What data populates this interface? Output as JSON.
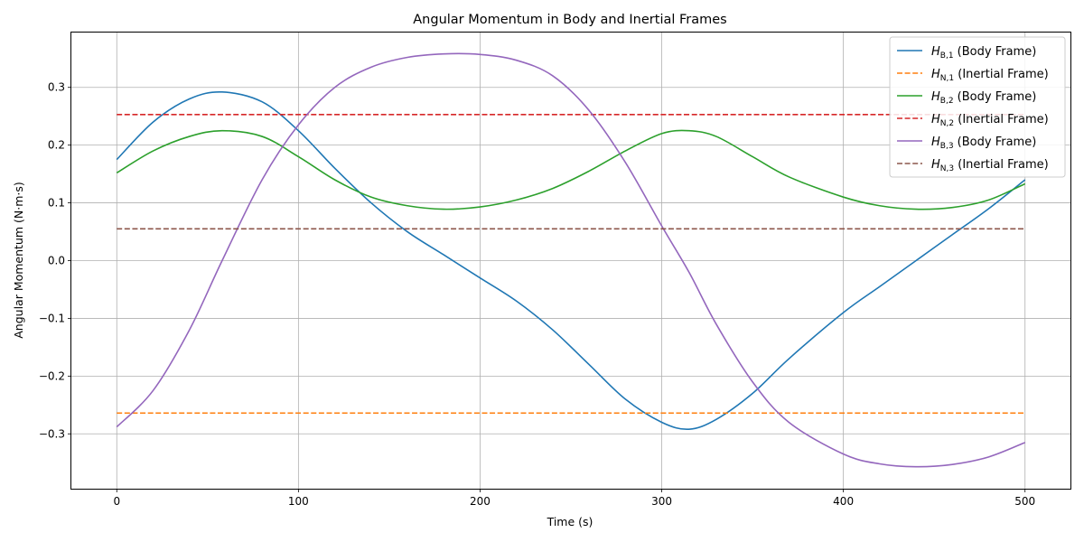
{
  "chart_data": {
    "type": "line",
    "title": "Angular Momentum in Body and Inertial Frames",
    "xlabel": "Time (s)",
    "ylabel": "Angular Momentum (N·m·s)",
    "xlim": [
      -25,
      525
    ],
    "ylim": [
      -0.395,
      0.395
    ],
    "xticks": [
      0,
      100,
      200,
      300,
      400,
      500
    ],
    "xtick_labels": [
      "0",
      "100",
      "200",
      "300",
      "400",
      "500"
    ],
    "yticks": [
      -0.3,
      -0.2,
      -0.1,
      0.0,
      0.1,
      0.2,
      0.3
    ],
    "ytick_labels": [
      "−0.3",
      "−0.2",
      "−0.1",
      "0.0",
      "0.1",
      "0.2",
      "0.3"
    ],
    "grid": true,
    "legend_position": "top-right",
    "x": [
      0,
      20,
      40,
      58,
      80,
      100,
      120,
      140,
      160,
      180,
      200,
      220,
      240,
      260,
      280,
      300,
      315,
      330,
      350,
      370,
      400,
      420,
      440,
      460,
      480,
      500
    ],
    "series": [
      {
        "name": "H_{B,1} (Body Frame)",
        "legend_main": "H",
        "legend_sub": "B,1",
        "legend_rest": " (Body Frame)",
        "color": "#1f77b4",
        "dashed": false,
        "values": [
          0.175,
          0.24,
          0.28,
          0.292,
          0.275,
          0.225,
          0.16,
          0.1,
          0.05,
          0.01,
          -0.03,
          -0.07,
          -0.12,
          -0.18,
          -0.24,
          -0.28,
          -0.292,
          -0.275,
          -0.23,
          -0.17,
          -0.09,
          -0.045,
          0.0,
          0.045,
          0.09,
          0.14
        ]
      },
      {
        "name": "H_{N,1} (Inertial Frame)",
        "legend_main": "H",
        "legend_sub": "N,1",
        "legend_rest": " (Inertial Frame)",
        "color": "#ff7f0e",
        "dashed": true,
        "values": [
          -0.264,
          -0.264,
          -0.264,
          -0.264,
          -0.264,
          -0.264,
          -0.264,
          -0.264,
          -0.264,
          -0.264,
          -0.264,
          -0.264,
          -0.264,
          -0.264,
          -0.264,
          -0.264,
          -0.264,
          -0.264,
          -0.264,
          -0.264,
          -0.264,
          -0.264,
          -0.264,
          -0.264,
          -0.264,
          -0.264
        ]
      },
      {
        "name": "H_{B,2} (Body Frame)",
        "legend_main": "H",
        "legend_sub": "B,2",
        "legend_rest": " (Body Frame)",
        "color": "#2ca02c",
        "dashed": false,
        "values": [
          0.152,
          0.19,
          0.215,
          0.225,
          0.215,
          0.18,
          0.14,
          0.11,
          0.095,
          0.089,
          0.093,
          0.105,
          0.125,
          0.155,
          0.19,
          0.22,
          0.225,
          0.215,
          0.18,
          0.145,
          0.11,
          0.095,
          0.089,
          0.092,
          0.105,
          0.133
        ]
      },
      {
        "name": "H_{N,2} (Inertial Frame)",
        "legend_main": "H",
        "legend_sub": "N,2",
        "legend_rest": " (Inertial Frame)",
        "color": "#d62728",
        "dashed": true,
        "values": [
          0.253,
          0.253,
          0.253,
          0.253,
          0.253,
          0.253,
          0.253,
          0.253,
          0.253,
          0.253,
          0.253,
          0.253,
          0.253,
          0.253,
          0.253,
          0.253,
          0.253,
          0.253,
          0.253,
          0.253,
          0.253,
          0.253,
          0.253,
          0.253,
          0.253,
          0.253
        ]
      },
      {
        "name": "H_{B,3} (Body Frame)",
        "legend_main": "H",
        "legend_sub": "B,3",
        "legend_rest": " (Body Frame)",
        "color": "#9467bd",
        "dashed": false,
        "values": [
          -0.288,
          -0.225,
          -0.12,
          0.0,
          0.14,
          0.235,
          0.3,
          0.335,
          0.352,
          0.358,
          0.357,
          0.347,
          0.32,
          0.26,
          0.17,
          0.06,
          -0.02,
          -0.11,
          -0.21,
          -0.28,
          -0.335,
          -0.352,
          -0.357,
          -0.353,
          -0.34,
          -0.315
        ]
      },
      {
        "name": "H_{N,3} (Inertial Frame)",
        "legend_main": "H",
        "legend_sub": "N,3",
        "legend_rest": " (Inertial Frame)",
        "color": "#8c564b",
        "dashed": true,
        "values": [
          0.055,
          0.055,
          0.055,
          0.055,
          0.055,
          0.055,
          0.055,
          0.055,
          0.055,
          0.055,
          0.055,
          0.055,
          0.055,
          0.055,
          0.055,
          0.055,
          0.055,
          0.055,
          0.055,
          0.055,
          0.055,
          0.055,
          0.055,
          0.055,
          0.055,
          0.055
        ]
      }
    ]
  }
}
